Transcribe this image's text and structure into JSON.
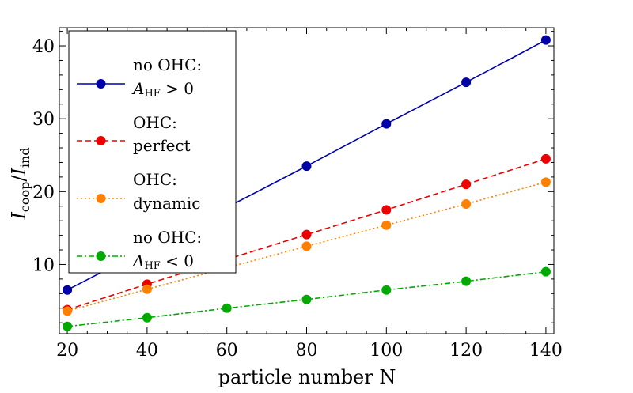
{
  "chart_data": {
    "type": "line",
    "title": "",
    "xlabel": "particle number N",
    "ylabel": "I_coop/I_ind",
    "ylabel_parts": {
      "main1": "I",
      "sub1": "coop",
      "slash": "/",
      "main2": "I",
      "sub2": "ind"
    },
    "xlim": [
      18,
      142
    ],
    "ylim": [
      0.5,
      42.5
    ],
    "xticks": [
      20,
      40,
      60,
      80,
      100,
      120,
      140
    ],
    "yticks": [
      10,
      20,
      30,
      40
    ],
    "legend_position": "upper-left",
    "series": [
      {
        "name": "no OHC: A_HF > 0",
        "legend_line1": "no OHC:",
        "legend_main": "A",
        "legend_sub": "HF",
        "legend_rest": " > 0",
        "color": "#0000aa",
        "dash": "solid",
        "x": [
          20,
          80,
          100,
          120,
          140
        ],
        "y": [
          6.5,
          23.5,
          29.3,
          35.0,
          40.8
        ]
      },
      {
        "name": "OHC: perfect",
        "legend_line1": "OHC:",
        "legend_line2": "perfect",
        "color": "#ee0000",
        "dash": "dashed",
        "x": [
          20,
          40,
          80,
          100,
          120,
          140
        ],
        "y": [
          3.8,
          7.3,
          14.1,
          17.5,
          21.0,
          24.5
        ]
      },
      {
        "name": "OHC: dynamic",
        "legend_line1": "OHC:",
        "legend_line2": "dynamic",
        "color": "#ff8000",
        "dash": "dotted",
        "x": [
          20,
          40,
          80,
          100,
          120,
          140
        ],
        "y": [
          3.6,
          6.6,
          12.5,
          15.4,
          18.3,
          21.3
        ]
      },
      {
        "name": "no OHC: A_HF < 0",
        "legend_line1": "no OHC:",
        "legend_main": "A",
        "legend_sub": "HF",
        "legend_rest": " < 0",
        "color": "#00aa00",
        "dash": "dashdot",
        "x": [
          20,
          40,
          60,
          80,
          100,
          120,
          140
        ],
        "y": [
          1.5,
          2.7,
          4.0,
          5.2,
          6.5,
          7.7,
          9.0
        ]
      }
    ]
  }
}
